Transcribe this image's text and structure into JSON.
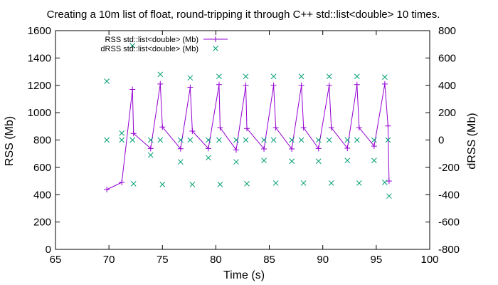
{
  "chart_data": {
    "type": "line",
    "title": "Creating a 10m list of float, round-tripping it through C++ std::list<double> 10 times.",
    "xlabel": "Time (s)",
    "ylabel": "RSS (Mb)",
    "y2label": "dRSS (Mb)",
    "xlim": [
      65,
      100
    ],
    "ylim": [
      0,
      1600
    ],
    "y2lim": [
      -800,
      800
    ],
    "xticks": [
      "65",
      "70",
      "75",
      "80",
      "85",
      "90",
      "95",
      "100"
    ],
    "yticks": [
      "0",
      "200",
      "400",
      "600",
      "800",
      "1000",
      "1200",
      "1400",
      "1600"
    ],
    "y2ticks": [
      "-800",
      "-600",
      "-400",
      "-200",
      "0",
      "200",
      "400",
      "600",
      "800"
    ],
    "grid": false,
    "legend_position": "top-left",
    "series": [
      {
        "name": "RSS std::list<double> (Mb)",
        "axis": "left",
        "style": "lines+points",
        "color": "#9400d3",
        "marker": "plus",
        "points": [
          [
            69.8,
            438
          ],
          [
            71.2,
            490
          ],
          [
            72.2,
            1170
          ],
          [
            72.3,
            848
          ],
          [
            73.9,
            738
          ],
          [
            74.8,
            1210
          ],
          [
            75.0,
            895
          ],
          [
            76.7,
            736
          ],
          [
            77.6,
            1185
          ],
          [
            77.8,
            865
          ],
          [
            79.3,
            738
          ],
          [
            80.3,
            1205
          ],
          [
            80.4,
            890
          ],
          [
            81.9,
            728
          ],
          [
            82.8,
            1200
          ],
          [
            82.9,
            885
          ],
          [
            84.5,
            735
          ],
          [
            85.4,
            1200
          ],
          [
            85.6,
            890
          ],
          [
            87.1,
            735
          ],
          [
            88.0,
            1200
          ],
          [
            88.2,
            890
          ],
          [
            89.6,
            738
          ],
          [
            90.6,
            1200
          ],
          [
            90.8,
            890
          ],
          [
            92.3,
            740
          ],
          [
            93.2,
            1205
          ],
          [
            93.4,
            890
          ],
          [
            94.8,
            755
          ],
          [
            95.8,
            1210
          ],
          [
            96.1,
            903
          ],
          [
            96.2,
            500
          ]
        ]
      },
      {
        "name": "dRSS std::list<double> (Mb)",
        "axis": "right",
        "style": "points",
        "color": "#009e73",
        "marker": "cross",
        "points": [
          [
            69.8,
            430
          ],
          [
            69.8,
            0
          ],
          [
            71.2,
            50
          ],
          [
            71.2,
            0
          ],
          [
            72.2,
            690
          ],
          [
            72.2,
            0
          ],
          [
            72.3,
            -320
          ],
          [
            73.9,
            -110
          ],
          [
            73.9,
            0
          ],
          [
            74.8,
            480
          ],
          [
            74.8,
            0
          ],
          [
            75.0,
            -325
          ],
          [
            76.7,
            -160
          ],
          [
            76.7,
            0
          ],
          [
            77.6,
            455
          ],
          [
            77.6,
            0
          ],
          [
            77.8,
            -325
          ],
          [
            79.3,
            -130
          ],
          [
            79.3,
            0
          ],
          [
            80.3,
            465
          ],
          [
            80.3,
            0
          ],
          [
            80.4,
            -325
          ],
          [
            81.9,
            -160
          ],
          [
            81.9,
            0
          ],
          [
            82.8,
            465
          ],
          [
            82.8,
            0
          ],
          [
            82.9,
            -320
          ],
          [
            84.5,
            -150
          ],
          [
            84.5,
            0
          ],
          [
            85.4,
            465
          ],
          [
            85.4,
            0
          ],
          [
            85.6,
            -315
          ],
          [
            87.1,
            -155
          ],
          [
            87.1,
            0
          ],
          [
            88.0,
            465
          ],
          [
            88.0,
            0
          ],
          [
            88.2,
            -315
          ],
          [
            89.6,
            -155
          ],
          [
            89.6,
            0
          ],
          [
            90.6,
            465
          ],
          [
            90.6,
            0
          ],
          [
            90.8,
            -315
          ],
          [
            92.3,
            -150
          ],
          [
            92.3,
            0
          ],
          [
            93.2,
            465
          ],
          [
            93.2,
            0
          ],
          [
            93.4,
            -315
          ],
          [
            94.8,
            -150
          ],
          [
            94.8,
            0
          ],
          [
            95.8,
            460
          ],
          [
            95.8,
            -310
          ],
          [
            96.1,
            0
          ],
          [
            96.2,
            -410
          ]
        ]
      }
    ]
  }
}
